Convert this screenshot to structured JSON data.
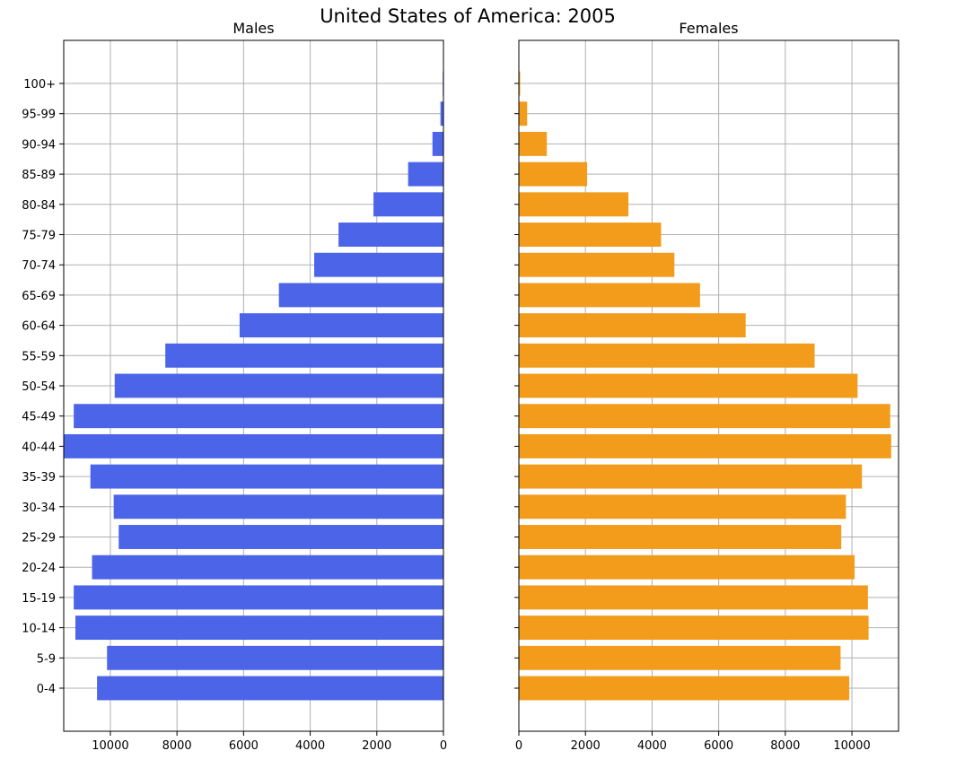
{
  "chart_data": {
    "type": "bar",
    "orientation": "horizontal",
    "layout": "population-pyramid",
    "title": "United States of America: 2005",
    "categories": [
      "0-4",
      "5-9",
      "10-14",
      "15-19",
      "20-24",
      "25-29",
      "30-34",
      "35-39",
      "40-44",
      "45-49",
      "50-54",
      "55-59",
      "60-64",
      "65-69",
      "70-74",
      "75-79",
      "80-84",
      "85-89",
      "90-94",
      "95-99",
      "100+"
    ],
    "grid": true,
    "panels": [
      {
        "title": "Males",
        "color": "#4c65e8",
        "direction": "leftward",
        "xlim": [
          11400,
          0
        ],
        "xticks": [
          10000,
          8000,
          6000,
          4000,
          2000,
          0
        ],
        "values": [
          10400,
          10100,
          11050,
          11100,
          10550,
          9750,
          9900,
          10600,
          11400,
          11100,
          9870,
          8350,
          6120,
          4940,
          3880,
          3150,
          2100,
          1060,
          330,
          90,
          20
        ]
      },
      {
        "title": "Females",
        "color": "#f39c1b",
        "direction": "rightward",
        "xlim": [
          0,
          11400
        ],
        "xticks": [
          0,
          2000,
          4000,
          6000,
          8000,
          10000
        ],
        "values": [
          9920,
          9660,
          10500,
          10480,
          10080,
          9680,
          9820,
          10300,
          11180,
          11150,
          10170,
          8880,
          6810,
          5440,
          4670,
          4270,
          3290,
          2050,
          840,
          250,
          40
        ]
      }
    ]
  }
}
